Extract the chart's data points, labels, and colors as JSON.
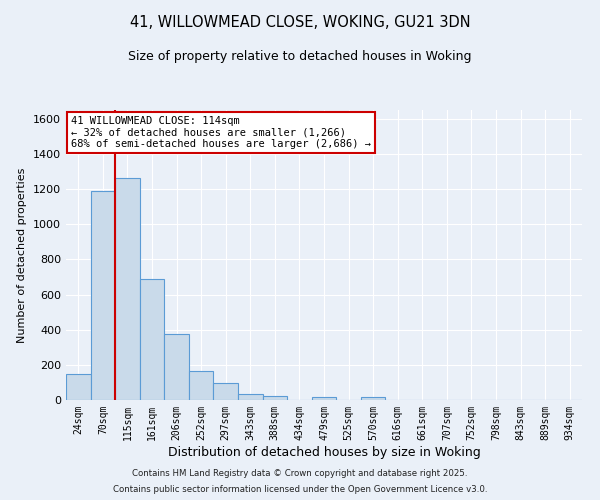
{
  "title": "41, WILLOWMEAD CLOSE, WOKING, GU21 3DN",
  "subtitle": "Size of property relative to detached houses in Woking",
  "xlabel": "Distribution of detached houses by size in Woking",
  "ylabel": "Number of detached properties",
  "bar_labels": [
    "24sqm",
    "70sqm",
    "115sqm",
    "161sqm",
    "206sqm",
    "252sqm",
    "297sqm",
    "343sqm",
    "388sqm",
    "434sqm",
    "479sqm",
    "525sqm",
    "570sqm",
    "616sqm",
    "661sqm",
    "707sqm",
    "752sqm",
    "798sqm",
    "843sqm",
    "889sqm",
    "934sqm"
  ],
  "bar_values": [
    148,
    1190,
    1265,
    690,
    375,
    165,
    95,
    35,
    22,
    0,
    15,
    0,
    15,
    0,
    0,
    0,
    0,
    0,
    0,
    0,
    0
  ],
  "bar_color": "#c9daea",
  "bar_edge_color": "#5b9bd5",
  "vline_color": "#cc0000",
  "annotation_title": "41 WILLOWMEAD CLOSE: 114sqm",
  "annotation_line1": "← 32% of detached houses are smaller (1,266)",
  "annotation_line2": "68% of semi-detached houses are larger (2,686) →",
  "annotation_box_color": "#ffffff",
  "annotation_box_edge_color": "#cc0000",
  "ylim": [
    0,
    1650
  ],
  "yticks": [
    0,
    200,
    400,
    600,
    800,
    1000,
    1200,
    1400,
    1600
  ],
  "background_color": "#eaf0f8",
  "grid_color": "#ffffff",
  "footer1": "Contains HM Land Registry data © Crown copyright and database right 2025.",
  "footer2": "Contains public sector information licensed under the Open Government Licence v3.0."
}
